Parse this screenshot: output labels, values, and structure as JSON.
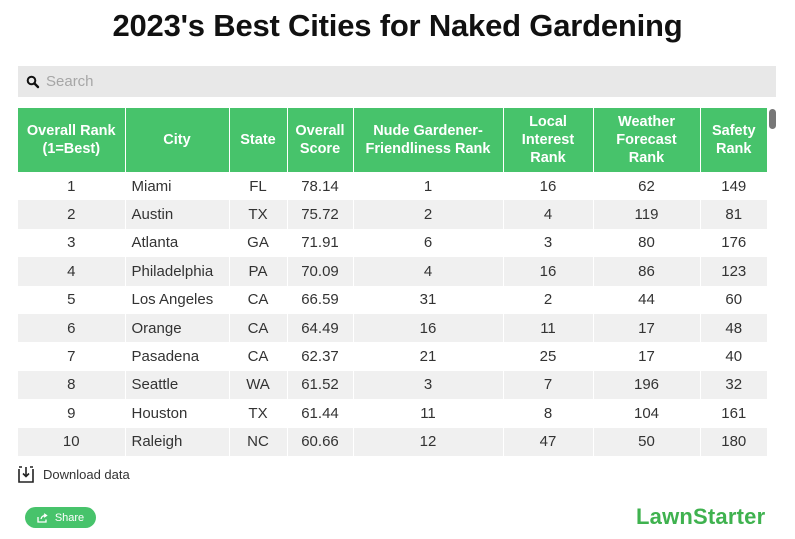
{
  "title": "2023's Best Cities for Naked Gardening",
  "search": {
    "placeholder": "Search",
    "value": ""
  },
  "table": {
    "headers": [
      "Overall Rank (1=Best)",
      "City",
      "State",
      "Overall Score",
      "Nude Gardener-Friendliness Rank",
      "Local Interest Rank",
      "Weather Forecast Rank",
      "Safety Rank"
    ],
    "rows": [
      [
        "1",
        "Miami",
        "FL",
        "78.14",
        "1",
        "16",
        "62",
        "149"
      ],
      [
        "2",
        "Austin",
        "TX",
        "75.72",
        "2",
        "4",
        "119",
        "81"
      ],
      [
        "3",
        "Atlanta",
        "GA",
        "71.91",
        "6",
        "3",
        "80",
        "176"
      ],
      [
        "4",
        "Philadelphia",
        "PA",
        "70.09",
        "4",
        "16",
        "86",
        "123"
      ],
      [
        "5",
        "Los Angeles",
        "CA",
        "66.59",
        "31",
        "2",
        "44",
        "60"
      ],
      [
        "6",
        "Orange",
        "CA",
        "64.49",
        "16",
        "11",
        "17",
        "48"
      ],
      [
        "7",
        "Pasadena",
        "CA",
        "62.37",
        "21",
        "25",
        "17",
        "40"
      ],
      [
        "8",
        "Seattle",
        "WA",
        "61.52",
        "3",
        "7",
        "196",
        "32"
      ],
      [
        "9",
        "Houston",
        "TX",
        "61.44",
        "11",
        "8",
        "104",
        "161"
      ],
      [
        "10",
        "Raleigh",
        "NC",
        "60.66",
        "12",
        "47",
        "50",
        "180"
      ]
    ]
  },
  "download_label": "Download data",
  "share_label": "Share",
  "logo": "LawnStarter",
  "colors": {
    "header_green": "#47c36b",
    "logo_green": "#3fb24f",
    "stripe": "#f0f0f0"
  }
}
